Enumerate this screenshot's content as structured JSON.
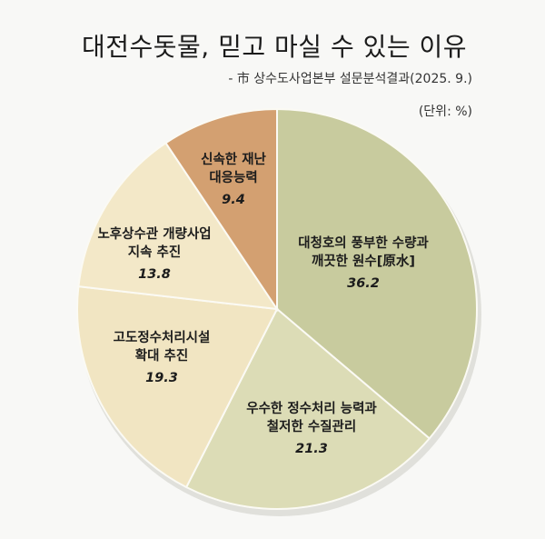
{
  "chart_data": {
    "type": "pie",
    "title": "대전수돗물, 믿고 마실 수 있는 이유",
    "subtitle": "- 市 상수도사업본부 설문분석결과(2025. 9.)",
    "unit": "(단위: %)",
    "slices": [
      {
        "label_lines": [
          "대청호의 풍부한 수량과",
          "깨끗한 원수[原水]"
        ],
        "value": 36.2,
        "color": "#c8cb9e"
      },
      {
        "label_lines": [
          "우수한 정수처리 능력과",
          "철저한 수질관리"
        ],
        "value": 21.3,
        "color": "#dcdcb6"
      },
      {
        "label_lines": [
          "고도정수처리시설",
          "확대 추진"
        ],
        "value": 19.3,
        "color": "#f1e5c2"
      },
      {
        "label_lines": [
          "노후상수관 개량사업",
          "지속 추진"
        ],
        "value": 13.8,
        "color": "#f3e8c8"
      },
      {
        "label_lines": [
          "신속한 재난",
          "대응능력"
        ],
        "value": 9.4,
        "color": "#d3a071"
      }
    ],
    "start": "top",
    "direction": "clockwise"
  }
}
